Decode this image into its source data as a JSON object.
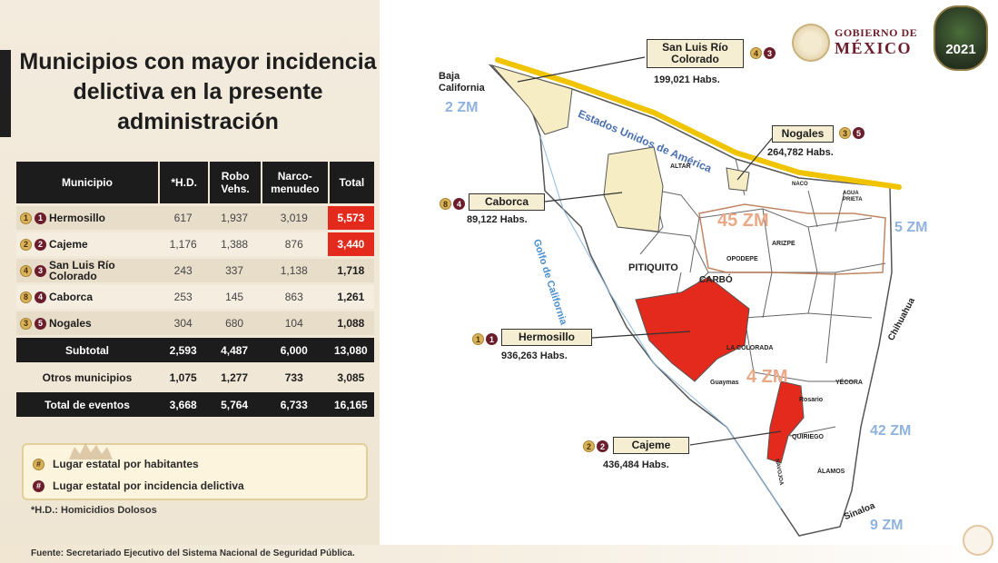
{
  "title": "Municipios con mayor incidencia delictiva en la presente administración",
  "table": {
    "headers": {
      "municipio": "Municipio",
      "hd": "*H.D.",
      "robo_1": "Robo",
      "robo_2": "Vehs.",
      "narco_1": "Narco-",
      "narco_2": "menudeo",
      "total": "Total"
    },
    "rows": [
      {
        "name": "Hermosillo",
        "pop_rank": "1",
        "crime_rank": "1",
        "hd": "617",
        "robo": "1,937",
        "narco": "3,019",
        "total": "5,573"
      },
      {
        "name": "Cajeme",
        "pop_rank": "2",
        "crime_rank": "2",
        "hd": "1,176",
        "robo": "1,388",
        "narco": "876",
        "total": "3,440"
      },
      {
        "name_1": "San Luis Río",
        "name_2": "Colorado",
        "pop_rank": "4",
        "crime_rank": "3",
        "hd": "243",
        "robo": "337",
        "narco": "1,138",
        "total": "1,718"
      },
      {
        "name": "Caborca",
        "pop_rank": "8",
        "crime_rank": "4",
        "hd": "253",
        "robo": "145",
        "narco": "863",
        "total": "1,261"
      },
      {
        "name": "Nogales",
        "pop_rank": "3",
        "crime_rank": "5",
        "hd": "304",
        "robo": "680",
        "narco": "104",
        "total": "1,088"
      }
    ],
    "subtotal": {
      "label": "Subtotal",
      "hd": "2,593",
      "robo": "4,487",
      "narco": "6,000",
      "total": "13,080"
    },
    "otros": {
      "label": "Otros municipios",
      "hd": "1,075",
      "robo": "1,277",
      "narco": "733",
      "total": "3,085"
    },
    "total_eventos": {
      "label": "Total de eventos",
      "hd": "3,668",
      "robo": "5,764",
      "narco": "6,733",
      "total": "16,165"
    }
  },
  "legend": {
    "population_label": "Lugar estatal por habitantes",
    "crime_label": "Lugar estatal por incidencia delictiva",
    "pop_badge": "#",
    "crime_badge": "#"
  },
  "hd_note": "*H.D.: Homicidios Dolosos",
  "source": "Fuente:  Secretariado Ejecutivo del Sistema Nacional de Seguridad Pública.",
  "logos": {
    "gov_line1": "GOBIERNO DE",
    "gov_line2": "MÉXICO",
    "year_logo": "2021"
  },
  "map": {
    "labels": {
      "baja_1": "Baja",
      "baja_2": "California",
      "usa": "Estados Unidos de América",
      "golfo": "Golfo de California",
      "chihuahua": "Chihuahua",
      "sinaloa": "Sinaloa",
      "pitiquito": "PITIQUITO",
      "carbo": "CARBÓ",
      "altar": "ALTAR",
      "la_colorada": "LA COLORADA",
      "guaymas": "Guaymas",
      "quiriego": "QUIRIEGO",
      "alamos": "ÁLAMOS",
      "rosario": "Rosario",
      "arizpe": "ARIZPE",
      "opodepe": "OPODEPE",
      "agua_prieta_1": "AGUA",
      "agua_prieta_2": "PRIETA",
      "naco": "NACO",
      "yecora": "YÉCORA",
      "navojoa": "NAVOJOA"
    },
    "zones": {
      "zm_baja": "2 ZM",
      "zm_north": "45 ZM",
      "zm_east": "5 ZM",
      "zm_center": "4 ZM",
      "zm_south_east": "42 ZM",
      "zm_south": "9 ZM"
    },
    "callouts": {
      "slrc": {
        "name_1": "San Luis Río",
        "name_2": "Colorado",
        "habs": "199,021 Habs.",
        "pop_rank": "4",
        "crime_rank": "3"
      },
      "nogales": {
        "name": "Nogales",
        "habs": "264,782 Habs.",
        "pop_rank": "3",
        "crime_rank": "5"
      },
      "caborca": {
        "name": "Caborca",
        "habs": "89,122 Habs.",
        "pop_rank": "8",
        "crime_rank": "4"
      },
      "hermosillo": {
        "name": "Hermosillo",
        "habs": "936,263 Habs.",
        "pop_rank": "1",
        "crime_rank": "1"
      },
      "cajeme": {
        "name": "Cajeme",
        "habs": "436,484 Habs.",
        "pop_rank": "2",
        "crime_rank": "2"
      }
    }
  },
  "colors": {
    "highlight_red": "#e32a1c",
    "border_yellow": "#f0c400",
    "zone_blue": "#8fb3dd",
    "zone_orange": "#e9a987",
    "maroon": "#6b1d2c",
    "gold": "#d9b35a"
  }
}
